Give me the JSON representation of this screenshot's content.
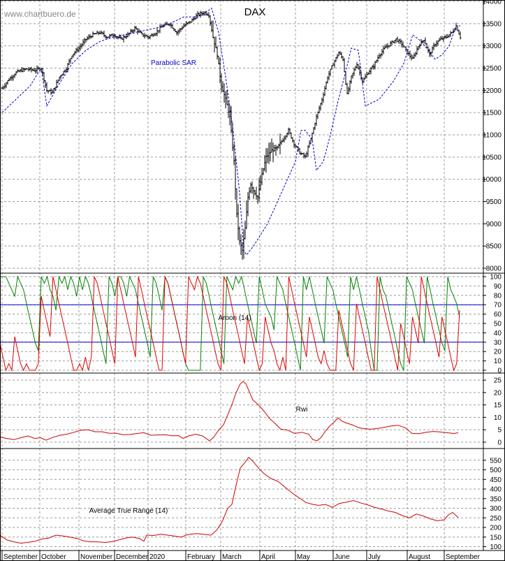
{
  "watermark": "www.chartbuero.de",
  "title": "DAX",
  "colors": {
    "price": "#000000",
    "sar": "#0000cc",
    "aroon_up": "#008000",
    "aroon_down": "#dd0000",
    "rwi": "#cc0000",
    "atr": "#cc0000",
    "guide": "#0000cc",
    "grid": "#9a9a9a"
  },
  "x_labels": [
    "September",
    "October",
    "November",
    "December",
    "2020",
    "February",
    "March",
    "April",
    "May",
    "June",
    "July",
    "August",
    "September"
  ],
  "chart_data": [
    {
      "type": "candlestick",
      "title": "DAX",
      "annotation": "Parabolic SAR",
      "ylim": [
        8000,
        14000
      ],
      "yticks": [
        8000,
        8500,
        9000,
        9500,
        10000,
        10500,
        11000,
        11500,
        12000,
        12500,
        13000,
        13500,
        14000
      ],
      "grid": true,
      "close": {
        "x": [
          0,
          10,
          20,
          28,
          36,
          46,
          56,
          64,
          72,
          82,
          92,
          100,
          110,
          120,
          130,
          140,
          150,
          160,
          170,
          180,
          190,
          200,
          210,
          220,
          230,
          240,
          250,
          260,
          270,
          280,
          290,
          296,
          302,
          308,
          314,
          320,
          326,
          332,
          336,
          340,
          344,
          348,
          352,
          356,
          360,
          366,
          372,
          378,
          386,
          394,
          402,
          410,
          418,
          426,
          434,
          442,
          450,
          458,
          466,
          474,
          482,
          488,
          494,
          500,
          508,
          516,
          524,
          532,
          540,
          548,
          556,
          564,
          572,
          580,
          588,
          596,
          604,
          612,
          620,
          628,
          636,
          644,
          650,
          656
        ],
        "y": [
          12050,
          12250,
          12400,
          12450,
          12480,
          12450,
          12500,
          12000,
          11950,
          12300,
          12500,
          12800,
          12950,
          13150,
          13250,
          13300,
          13200,
          13250,
          13150,
          13250,
          13400,
          13250,
          13200,
          13300,
          13450,
          13500,
          13300,
          13450,
          13550,
          13700,
          13750,
          13700,
          13200,
          12800,
          12100,
          11800,
          11400,
          10400,
          9200,
          8600,
          8400,
          8900,
          9600,
          9900,
          9750,
          9600,
          10100,
          10500,
          10650,
          10700,
          10900,
          11100,
          10800,
          10600,
          10500,
          10900,
          11400,
          11800,
          12300,
          12600,
          12850,
          12700,
          11900,
          12300,
          12600,
          12200,
          12400,
          12550,
          12800,
          12950,
          13050,
          13150,
          13050,
          12850,
          12700,
          13000,
          13150,
          12800,
          13050,
          13150,
          13200,
          13300,
          13450,
          13200
        ]
      },
      "sar": {
        "x": [
          0,
          20,
          40,
          56,
          64,
          80,
          100,
          120,
          140,
          160,
          190,
          220,
          240,
          260,
          280,
          296,
          300,
          310,
          320,
          330,
          340,
          346,
          350,
          360,
          380,
          400,
          420,
          428,
          434,
          444,
          450,
          460,
          470,
          480,
          490,
          500,
          510,
          520,
          540,
          560,
          575,
          588,
          600,
          620,
          630,
          640,
          650,
          656
        ],
        "y": [
          11500,
          11800,
          12100,
          12500,
          11650,
          12100,
          12600,
          12900,
          13100,
          13200,
          13300,
          13400,
          13500,
          13650,
          13650,
          13800,
          13850,
          13300,
          12300,
          11200,
          9700,
          8400,
          8300,
          8500,
          9000,
          9700,
          10400,
          11100,
          11100,
          10900,
          10200,
          10400,
          11000,
          11700,
          12300,
          12950,
          12900,
          11650,
          11800,
          12200,
          12600,
          13250,
          13100,
          12700,
          12800,
          13000,
          13450,
          13450
        ]
      }
    },
    {
      "type": "line",
      "title": "Aroon (14)",
      "ylim": [
        0,
        100
      ],
      "yticks": [
        0,
        10,
        20,
        30,
        40,
        50,
        60,
        70,
        80,
        90,
        100
      ],
      "reference_lines": [
        30,
        70
      ],
      "series": [
        {
          "values": [
            100,
            100,
            100,
            93,
            86,
            79,
            100,
            93,
            86,
            71,
            57,
            43,
            29,
            21,
            100,
            93,
            100,
            86,
            79,
            64,
            100,
            93,
            100,
            86,
            100,
            93,
            79,
            100,
            86,
            100,
            93,
            79,
            64,
            50,
            36,
            21,
            7,
            100,
            93,
            79,
            100,
            100,
            93,
            79,
            100,
            93,
            86,
            71,
            57,
            43,
            29,
            14,
            100,
            93,
            79,
            64,
            100,
            93,
            79,
            64,
            50,
            36,
            21,
            7,
            0,
            0,
            0,
            0,
            0,
            100,
            93,
            79,
            64,
            50,
            36,
            21,
            7,
            100,
            93,
            86,
            100,
            93,
            100,
            86,
            71,
            57,
            43,
            29,
            100,
            86,
            71,
            64,
            57,
            43,
            100,
            93,
            86,
            71,
            57,
            43,
            29,
            14,
            0,
            100,
            86,
            100,
            86,
            71,
            57,
            43,
            29,
            100,
            93,
            86,
            71,
            57,
            43,
            29,
            14,
            100,
            86,
            100,
            86,
            71,
            57,
            43,
            21,
            0,
            0,
            100,
            86,
            79,
            64,
            50,
            36,
            21,
            7,
            0,
            100,
            93,
            86,
            71,
            57,
            43,
            29,
            100,
            86,
            71,
            57,
            43,
            29,
            21,
            100,
            86,
            79,
            71,
            57
          ]
        },
        {
          "values": [
            29,
            14,
            0,
            7,
            0,
            36,
            21,
            7,
            0,
            7,
            0,
            0,
            0,
            7,
            79,
            64,
            50,
            36,
            100,
            86,
            71,
            57,
            43,
            29,
            14,
            0,
            0,
            7,
            0,
            14,
            0,
            14,
            100,
            93,
            79,
            64,
            50,
            36,
            21,
            7,
            100,
            86,
            71,
            57,
            43,
            29,
            14,
            100,
            86,
            71,
            57,
            43,
            29,
            14,
            0,
            0,
            100,
            93,
            79,
            64,
            50,
            36,
            21,
            7,
            100,
            93,
            86,
            100,
            93,
            79,
            64,
            50,
            36,
            21,
            7,
            0,
            100,
            93,
            79,
            64,
            50,
            36,
            21,
            7,
            57,
            43,
            29,
            14,
            0,
            7,
            57,
            43,
            29,
            21,
            7,
            0,
            14,
            0,
            100,
            86,
            71,
            57,
            43,
            29,
            14,
            57,
            43,
            29,
            14,
            7,
            21,
            7,
            0,
            0,
            0,
            64,
            50,
            36,
            21,
            7,
            0,
            71,
            57,
            43,
            29,
            14,
            0,
            0,
            100,
            86,
            71,
            57,
            43,
            29,
            14,
            0,
            50,
            36,
            21,
            7,
            57,
            43,
            29,
            100,
            86,
            71,
            57,
            43,
            29,
            14,
            57,
            43,
            29,
            14,
            0,
            7,
            64
          ]
        }
      ]
    },
    {
      "type": "line",
      "title": "Rwi",
      "ylim": [
        -2,
        27
      ],
      "yticks": [
        0,
        5,
        10,
        15,
        20,
        25
      ],
      "series": [
        {
          "x": [
            0,
            10,
            20,
            30,
            40,
            50,
            58,
            66,
            76,
            86,
            96,
            106,
            116,
            126,
            136,
            146,
            156,
            166,
            176,
            186,
            196,
            206,
            216,
            226,
            236,
            246,
            256,
            262,
            270,
            280,
            290,
            300,
            306,
            312,
            320,
            326,
            332,
            338,
            344,
            348,
            352,
            356,
            362,
            370,
            378,
            386,
            394,
            402,
            412,
            422,
            432,
            442,
            448,
            454,
            460,
            466,
            472,
            478,
            484,
            490,
            496,
            504,
            512,
            520,
            530,
            540,
            550,
            560,
            570,
            580,
            590,
            600,
            610,
            620,
            630,
            640,
            650,
            656
          ],
          "values": [
            2,
            1.5,
            1,
            1.8,
            2.5,
            1.5,
            1.8,
            0.8,
            2,
            2.8,
            3.2,
            4,
            4.8,
            5,
            4.2,
            4.2,
            3.6,
            3.6,
            3,
            3.1,
            3.5,
            3.8,
            2.8,
            2.9,
            3,
            2.6,
            2.6,
            1.5,
            2.5,
            3.2,
            2.5,
            0.5,
            2,
            4.5,
            7,
            11,
            15,
            20,
            23.5,
            24.5,
            23.5,
            21,
            17,
            15,
            12.5,
            9.5,
            7.5,
            5.2,
            4.8,
            3.5,
            4,
            3.2,
            1,
            0.6,
            2,
            4.5,
            6.5,
            8,
            9.8,
            8.4,
            7.7,
            7,
            6,
            5.5,
            5.2,
            5.5,
            6,
            6.5,
            6.8,
            5.8,
            3.5,
            3.4,
            4,
            4.3,
            4.1,
            3.8,
            3.5,
            3.8
          ]
        }
      ]
    },
    {
      "type": "line",
      "title": "Average True Range (14)",
      "ylim": [
        80,
        600
      ],
      "yticks": [
        100,
        150,
        200,
        250,
        300,
        350,
        400,
        450,
        500,
        550
      ],
      "series": [
        {
          "x": [
            0,
            10,
            20,
            30,
            40,
            50,
            60,
            70,
            80,
            90,
            100,
            110,
            120,
            130,
            140,
            150,
            160,
            170,
            180,
            190,
            200,
            206,
            210,
            220,
            230,
            240,
            250,
            260,
            266,
            272,
            282,
            292,
            302,
            310,
            318,
            326,
            332,
            338,
            344,
            350,
            356,
            362,
            370,
            378,
            388,
            398,
            408,
            418,
            428,
            438,
            448,
            456,
            466,
            476,
            486,
            496,
            506,
            516,
            526,
            536,
            546,
            556,
            566,
            576,
            586,
            596,
            606,
            616,
            626,
            636,
            642,
            648,
            656
          ],
          "values": [
            160,
            135,
            125,
            118,
            123,
            128,
            140,
            145,
            160,
            156,
            150,
            143,
            130,
            125,
            125,
            122,
            126,
            135,
            145,
            150,
            142,
            128,
            160,
            158,
            165,
            160,
            155,
            150,
            160,
            165,
            168,
            164,
            160,
            185,
            230,
            300,
            320,
            420,
            510,
            535,
            565,
            545,
            510,
            480,
            455,
            440,
            410,
            380,
            355,
            330,
            320,
            315,
            320,
            305,
            325,
            332,
            340,
            328,
            318,
            305,
            296,
            286,
            278,
            262,
            250,
            270,
            260,
            245,
            235,
            240,
            265,
            278,
            252
          ]
        }
      ]
    }
  ]
}
